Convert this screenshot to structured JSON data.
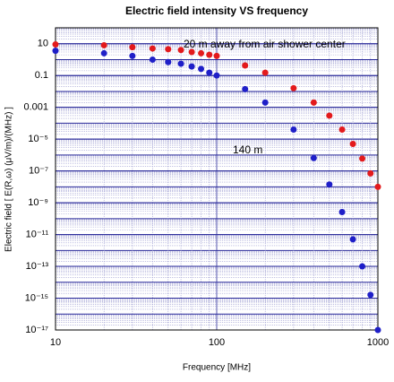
{
  "chart_data": {
    "type": "scatter",
    "title": "Electric field intensity VS frequency",
    "x_label": "Frequency [MHz]",
    "y_label": "Electric field [ E(R,ω) (μV/m)/(MHz) ]",
    "annotations": [
      "20 m away from air shower center",
      "140 m"
    ],
    "log_x": true,
    "log_y": true,
    "grid": true,
    "xlim": [
      10,
      1000
    ],
    "xticks": [
      10,
      100,
      1000
    ],
    "ylim": [
      1e-17,
      100
    ],
    "yticks": [
      {
        "value": 1e-17,
        "label": "10⁻¹⁷"
      },
      {
        "value": 1e-15,
        "label": "10⁻¹⁵"
      },
      {
        "value": 1e-13,
        "label": "10⁻¹³"
      },
      {
        "value": 1e-11,
        "label": "10⁻¹¹"
      },
      {
        "value": 1e-09,
        "label": "10⁻⁹"
      },
      {
        "value": 1e-07,
        "label": "10⁻⁷"
      },
      {
        "value": 1e-05,
        "label": "10⁻⁵"
      },
      0.001,
      0.1,
      10
    ],
    "x": [
      10,
      20,
      30,
      40,
      50,
      60,
      70,
      80,
      90,
      100,
      150,
      200,
      300,
      400,
      500,
      600,
      700,
      800,
      900,
      1000
    ],
    "series": [
      {
        "name": "20 m",
        "color": "#e31a1c",
        "values": [
          9,
          8,
          6,
          5,
          4.5,
          4,
          3,
          2.5,
          2,
          1.7,
          0.43,
          0.15,
          0.016,
          0.002,
          0.0003,
          4e-05,
          5e-06,
          6e-07,
          7e-08,
          1e-08
        ]
      },
      {
        "name": "140 m",
        "color": "#1f1fc8",
        "values": [
          3.6,
          2.5,
          1.7,
          1.0,
          0.7,
          0.55,
          0.37,
          0.26,
          0.15,
          0.1,
          0.014,
          0.002,
          4e-05,
          6.5e-07,
          1.4e-08,
          2.6e-10,
          5e-12,
          1e-13,
          1.6e-15,
          1e-17
        ]
      }
    ]
  }
}
